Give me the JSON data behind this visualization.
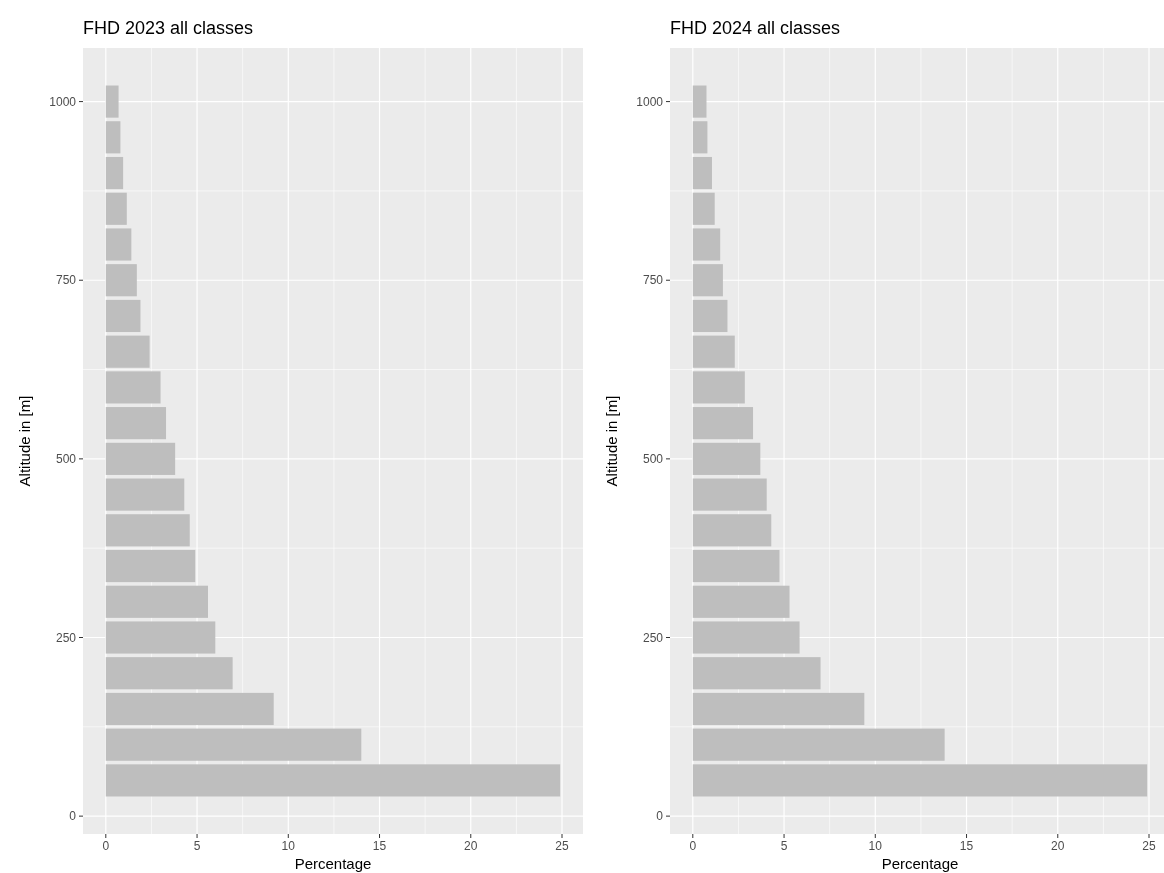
{
  "chart_data": [
    {
      "type": "bar",
      "orientation": "horizontal",
      "title": "FHD 2023 all classes",
      "xlabel": "Percentage",
      "ylabel": "Altitude in [m]",
      "x": [
        50,
        100,
        150,
        200,
        250,
        300,
        350,
        400,
        450,
        500,
        550,
        600,
        650,
        700,
        750,
        800,
        850,
        900,
        950,
        1000
      ],
      "values": [
        24.9,
        14.0,
        9.2,
        6.95,
        6.0,
        5.6,
        4.9,
        4.6,
        4.3,
        3.8,
        3.3,
        3.0,
        2.4,
        1.9,
        1.7,
        1.4,
        1.15,
        0.95,
        0.8,
        0.7
      ],
      "color": "#bebebe",
      "xlim": [
        -1.25,
        26.15
      ],
      "xticks": [
        0,
        5,
        10,
        15,
        20,
        25
      ],
      "ylim": [
        -25,
        1075
      ],
      "yticks": [
        0,
        250,
        500,
        750,
        1000
      ],
      "grid": true
    },
    {
      "type": "bar",
      "orientation": "horizontal",
      "title": "FHD 2024 all classes",
      "xlabel": "Percentage",
      "ylabel": "Altitude in [m]",
      "x": [
        50,
        100,
        150,
        200,
        250,
        300,
        350,
        400,
        450,
        500,
        550,
        600,
        650,
        700,
        750,
        800,
        850,
        900,
        950,
        1000
      ],
      "values": [
        24.9,
        13.8,
        9.4,
        7.0,
        5.85,
        5.3,
        4.75,
        4.3,
        4.05,
        3.7,
        3.3,
        2.85,
        2.3,
        1.9,
        1.65,
        1.5,
        1.2,
        1.05,
        0.8,
        0.75
      ],
      "color": "#bebebe",
      "xlim": [
        -1.25,
        26.15
      ],
      "xticks": [
        0,
        5,
        10,
        15,
        20,
        25
      ],
      "ylim": [
        -25,
        1075
      ],
      "yticks": [
        0,
        250,
        500,
        750,
        1000
      ],
      "grid": true
    }
  ]
}
